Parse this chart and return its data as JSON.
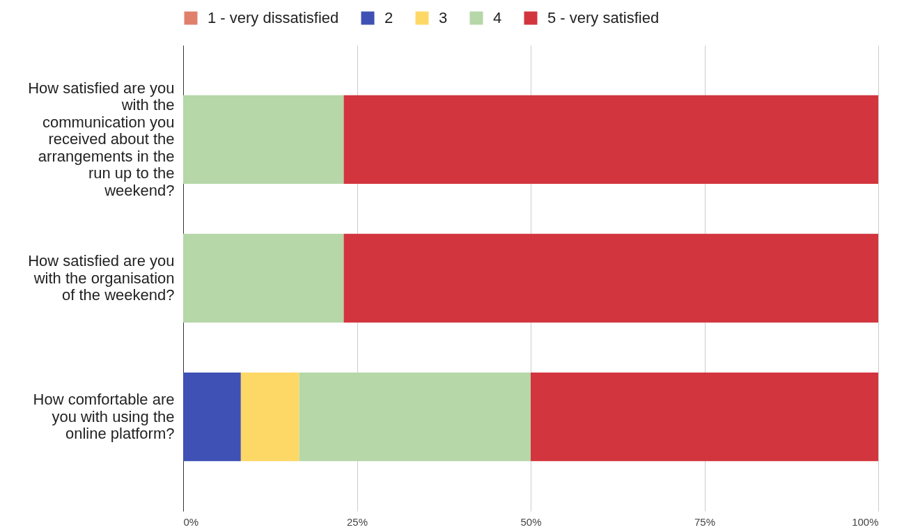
{
  "chart_data": {
    "type": "bar",
    "orientation": "horizontal",
    "stacked": true,
    "categories": [
      "How satisfied are you with the communication you received about the arrangements in the run up to the weekend?",
      "How satisfied are you with the organisation of the weekend?",
      "How comfortable are you with using the online platform?"
    ],
    "series": [
      {
        "name": "1 - very dissatisfied",
        "color": "#e0806c",
        "values": [
          0,
          0,
          0
        ]
      },
      {
        "name": "2",
        "color": "#3f51b5",
        "values": [
          0,
          0,
          8.3
        ]
      },
      {
        "name": "3",
        "color": "#fdd866",
        "values": [
          0,
          0,
          8.4
        ]
      },
      {
        "name": "4",
        "color": "#b6d7a8",
        "values": [
          23.1,
          23.1,
          33.3
        ]
      },
      {
        "name": "5 - very satisfied",
        "color": "#d2353e",
        "values": [
          76.9,
          76.9,
          50
        ]
      }
    ],
    "xlim": [
      0,
      100
    ],
    "xticks": [
      {
        "value": 0,
        "label": "0%"
      },
      {
        "value": 25,
        "label": "25%"
      },
      {
        "value": 50,
        "label": "50%"
      },
      {
        "value": 75,
        "label": "75%"
      },
      {
        "value": 100,
        "label": "100%"
      }
    ],
    "grid": "x",
    "legend": "top"
  }
}
